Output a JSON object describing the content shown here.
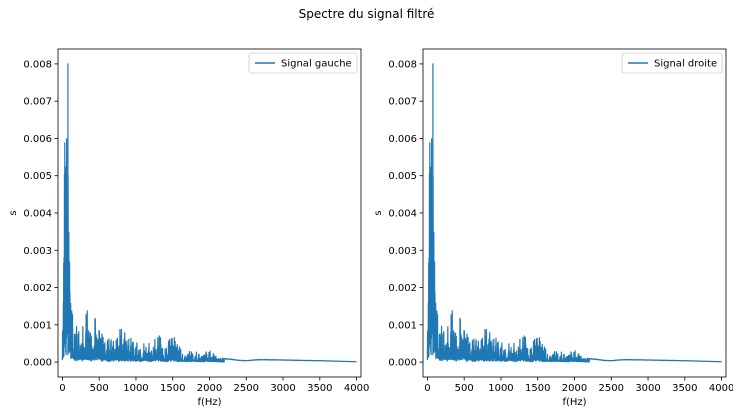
{
  "figure": {
    "suptitle": "Spectre du signal filtré"
  },
  "chart_data": [
    {
      "type": "line",
      "xlabel": "f(Hz)",
      "ylabel": "s",
      "xlim": [
        -60,
        4060
      ],
      "ylim": [
        -0.0004,
        0.0084
      ],
      "xticks": [
        0,
        500,
        1000,
        1500,
        2000,
        2500,
        3000,
        3500,
        4000
      ],
      "xtick_labels": [
        "0",
        "500",
        "1000",
        "1500",
        "2000",
        "2500",
        "3000",
        "3500",
        "4000"
      ],
      "yticks": [
        0.0,
        0.001,
        0.002,
        0.003,
        0.004,
        0.005,
        0.006,
        0.007,
        0.008
      ],
      "ytick_labels": [
        "0.000",
        "0.001",
        "0.002",
        "0.003",
        "0.004",
        "0.005",
        "0.006",
        "0.007",
        "0.008"
      ],
      "legend_position": "upper right",
      "grid": false,
      "series": [
        {
          "name": "Signal gauche",
          "color": "#1f77b4",
          "envelope": [
            [
              0,
              0.0017
            ],
            [
              20,
              0.0045
            ],
            [
              40,
              0.0068
            ],
            [
              55,
              0.0065
            ],
            [
              65,
              0.0059
            ],
            [
              75,
              0.008
            ],
            [
              85,
              0.0058
            ],
            [
              95,
              0.0035
            ],
            [
              110,
              0.0023
            ],
            [
              130,
              0.0016
            ],
            [
              160,
              0.0012
            ],
            [
              200,
              0.0009
            ],
            [
              240,
              0.0008
            ],
            [
              280,
              0.0011
            ],
            [
              320,
              0.0021
            ],
            [
              360,
              0.0008
            ],
            [
              420,
              0.0009
            ],
            [
              480,
              0.0019
            ],
            [
              520,
              0.0008
            ],
            [
              600,
              0.0006
            ],
            [
              700,
              0.0008
            ],
            [
              800,
              0.0009
            ],
            [
              900,
              0.0008
            ],
            [
              1000,
              0.0006
            ],
            [
              1100,
              0.0005
            ],
            [
              1200,
              0.0005
            ],
            [
              1300,
              0.0008
            ],
            [
              1400,
              0.0004
            ],
            [
              1500,
              0.0008
            ],
            [
              1600,
              0.0004
            ],
            [
              1700,
              0.0003
            ],
            [
              1800,
              0.0003
            ],
            [
              1900,
              0.0002
            ],
            [
              2000,
              0.0004
            ],
            [
              2100,
              0.00015
            ],
            [
              2200,
              0.0001
            ],
            [
              2300,
              8e-05
            ],
            [
              2400,
              5e-05
            ],
            [
              2500,
              4e-05
            ],
            [
              2600,
              6e-05
            ],
            [
              2700,
              7e-05
            ],
            [
              3000,
              6e-05
            ],
            [
              3500,
              4e-05
            ],
            [
              4000,
              1e-05
            ]
          ]
        }
      ]
    },
    {
      "type": "line",
      "xlabel": "f(Hz)",
      "ylabel": "s",
      "xlim": [
        -60,
        4060
      ],
      "ylim": [
        -0.0004,
        0.0084
      ],
      "xticks": [
        0,
        500,
        1000,
        1500,
        2000,
        2500,
        3000,
        3500,
        4000
      ],
      "xtick_labels": [
        "0",
        "500",
        "1000",
        "1500",
        "2000",
        "2500",
        "3000",
        "3500",
        "4000"
      ],
      "yticks": [
        0.0,
        0.001,
        0.002,
        0.003,
        0.004,
        0.005,
        0.006,
        0.007,
        0.008
      ],
      "ytick_labels": [
        "0.000",
        "0.001",
        "0.002",
        "0.003",
        "0.004",
        "0.005",
        "0.006",
        "0.007",
        "0.008"
      ],
      "legend_position": "upper right",
      "grid": false,
      "series": [
        {
          "name": "Signal droite",
          "color": "#1f77b4",
          "envelope": [
            [
              0,
              0.0017
            ],
            [
              20,
              0.0045
            ],
            [
              40,
              0.0068
            ],
            [
              55,
              0.0065
            ],
            [
              65,
              0.0059
            ],
            [
              75,
              0.008
            ],
            [
              85,
              0.0058
            ],
            [
              95,
              0.0035
            ],
            [
              110,
              0.0023
            ],
            [
              130,
              0.0016
            ],
            [
              160,
              0.0012
            ],
            [
              200,
              0.0009
            ],
            [
              240,
              0.0008
            ],
            [
              280,
              0.0011
            ],
            [
              320,
              0.0021
            ],
            [
              360,
              0.0008
            ],
            [
              420,
              0.0009
            ],
            [
              480,
              0.0019
            ],
            [
              520,
              0.0008
            ],
            [
              600,
              0.0006
            ],
            [
              700,
              0.0008
            ],
            [
              800,
              0.0009
            ],
            [
              900,
              0.0008
            ],
            [
              1000,
              0.0006
            ],
            [
              1100,
              0.0005
            ],
            [
              1200,
              0.0005
            ],
            [
              1300,
              0.0008
            ],
            [
              1400,
              0.0004
            ],
            [
              1500,
              0.0008
            ],
            [
              1600,
              0.0004
            ],
            [
              1700,
              0.0003
            ],
            [
              1800,
              0.0003
            ],
            [
              1900,
              0.0002
            ],
            [
              2000,
              0.0004
            ],
            [
              2100,
              0.00015
            ],
            [
              2200,
              0.0001
            ],
            [
              2300,
              8e-05
            ],
            [
              2400,
              5e-05
            ],
            [
              2500,
              4e-05
            ],
            [
              2600,
              6e-05
            ],
            [
              2700,
              7e-05
            ],
            [
              3000,
              6e-05
            ],
            [
              3500,
              4e-05
            ],
            [
              4000,
              1e-05
            ]
          ]
        }
      ]
    }
  ]
}
